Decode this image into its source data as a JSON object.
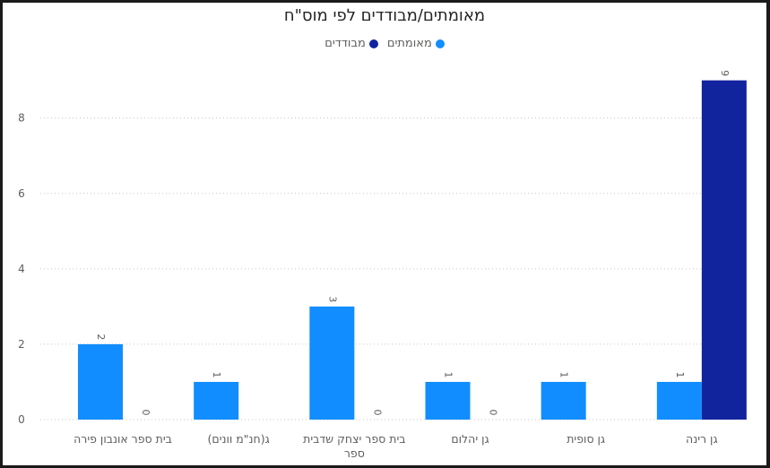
{
  "chart_data": {
    "type": "bar",
    "title": "מאומתים/מבודדים לפי מוס\"ח",
    "categories": [
      "בית ספר אונבון פירה",
      "ג(חנ\"מ וונים)",
      "בית ספר יצחק שדבית ספר",
      "גן יהלום",
      "גן סופית",
      "גן רינה"
    ],
    "series": [
      {
        "name": "מאומתים",
        "color": "#118DFF",
        "values": [
          2,
          1,
          3,
          1,
          1,
          1
        ]
      },
      {
        "name": "מבודדים",
        "color": "#12239E",
        "values": [
          0,
          null,
          0,
          0,
          null,
          9
        ]
      }
    ],
    "yticks": [
      "0",
      "2",
      "4",
      "6",
      "8"
    ],
    "ylim": [
      0,
      9.8
    ],
    "grid": true,
    "legend_position": "top-center"
  }
}
